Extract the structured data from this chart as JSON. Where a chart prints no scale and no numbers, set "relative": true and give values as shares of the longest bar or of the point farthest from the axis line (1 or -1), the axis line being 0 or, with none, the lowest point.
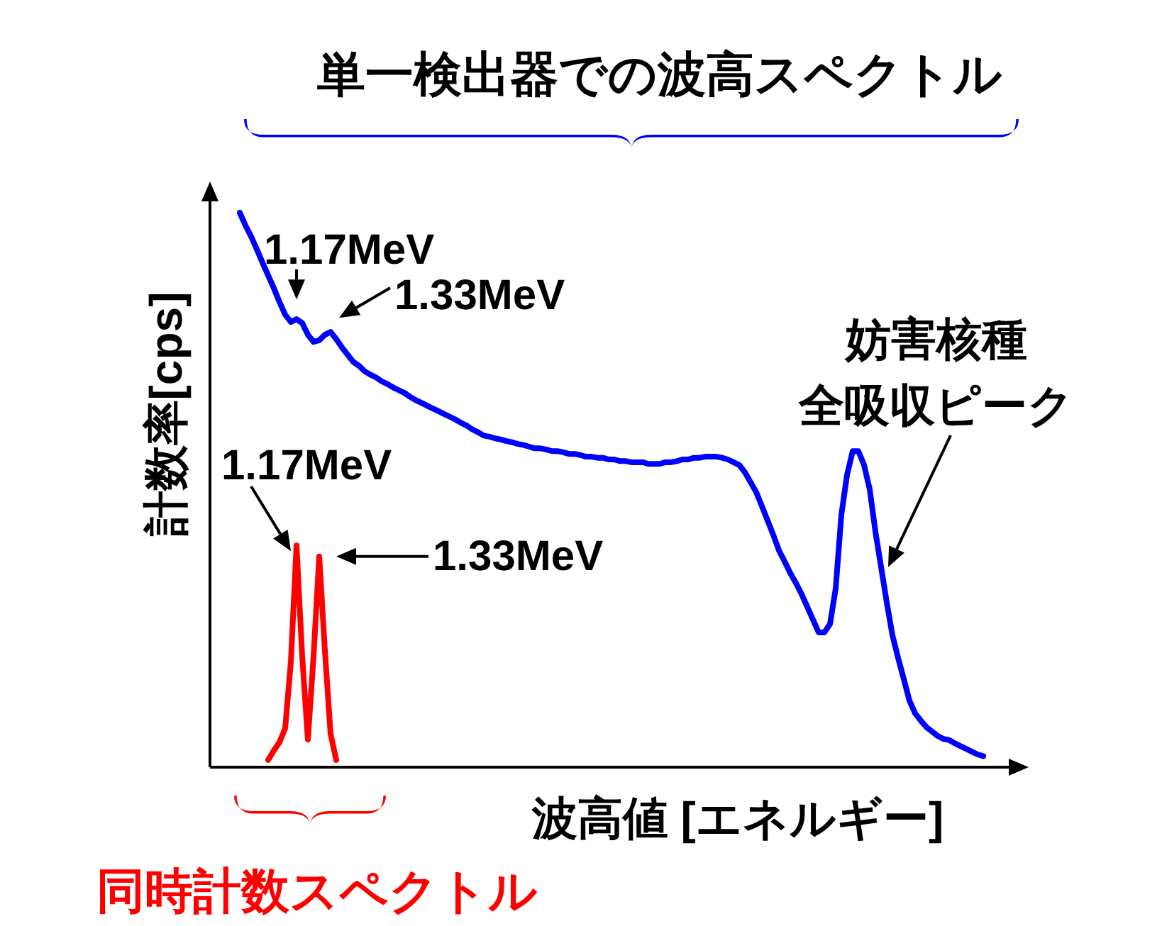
{
  "chart_data": {
    "type": "line",
    "relative": true,
    "title": "単一検出器での波高スペクトル",
    "xlabel": "波高値 [エネルギー]",
    "ylabel": "計数率[cps]",
    "categories": [
      null,
      null,
      null,
      null,
      null,
      null,
      null,
      null,
      null,
      null,
      null,
      null,
      null,
      null,
      null,
      null,
      null,
      null,
      null,
      null,
      null,
      null,
      null,
      null,
      null,
      null,
      null,
      null,
      null,
      null,
      null,
      null,
      null,
      null,
      null,
      null,
      null,
      null,
      null,
      null,
      null,
      null,
      null,
      null,
      null,
      null,
      null,
      null,
      null,
      null,
      null,
      null,
      null,
      null,
      null,
      null,
      null,
      null,
      null,
      null,
      null,
      null,
      null,
      null,
      null,
      null,
      null,
      null,
      null,
      null,
      null,
      null,
      null,
      null,
      null,
      null,
      null,
      null,
      null,
      null,
      null,
      null,
      null,
      null,
      null,
      null,
      null,
      null,
      null,
      null,
      null,
      null,
      null,
      null,
      null,
      null,
      null,
      null,
      null,
      null,
      null,
      null,
      null,
      null,
      null,
      null,
      null,
      null,
      null,
      null,
      null,
      null,
      null,
      null,
      null,
      null,
      null,
      null,
      null,
      null,
      null,
      null,
      null,
      null,
      null,
      null,
      null,
      null,
      null,
      null,
      null,
      null
    ],
    "series": [
      {
        "color": "#0000ff",
        "values": [
          1.0,
          0.977,
          0.957,
          0.934,
          0.91,
          0.887,
          0.864,
          0.839,
          0.816,
          0.803,
          0.808,
          0.801,
          0.78,
          0.767,
          0.77,
          0.78,
          0.785,
          0.772,
          0.757,
          0.744,
          0.731,
          0.724,
          0.714,
          0.708,
          0.703,
          0.696,
          0.691,
          0.685,
          0.68,
          0.675,
          0.668,
          0.662,
          0.657,
          0.652,
          0.647,
          0.642,
          0.637,
          0.632,
          0.627,
          0.621,
          0.616,
          0.609,
          0.604,
          0.598,
          0.596,
          0.593,
          0.591,
          0.588,
          0.586,
          0.583,
          0.581,
          0.578,
          0.575,
          0.575,
          0.573,
          0.57,
          0.57,
          0.568,
          0.565,
          0.565,
          0.563,
          0.56,
          0.56,
          0.558,
          0.558,
          0.555,
          0.555,
          0.552,
          0.552,
          0.55,
          0.55,
          0.55,
          0.547,
          0.547,
          0.547,
          0.55,
          0.55,
          0.552,
          0.555,
          0.555,
          0.558,
          0.558,
          0.56,
          0.56,
          0.56,
          0.558,
          0.555,
          0.55,
          0.545,
          0.532,
          0.514,
          0.496,
          0.471,
          0.445,
          0.419,
          0.391,
          0.371,
          0.35,
          0.332,
          0.312,
          0.289,
          0.266,
          0.243,
          0.243,
          0.258,
          0.322,
          0.455,
          0.527,
          0.57,
          0.57,
          0.545,
          0.501,
          0.425,
          0.361,
          0.297,
          0.238,
          0.197,
          0.159,
          0.12,
          0.097,
          0.084,
          0.072,
          0.064,
          0.056,
          0.051,
          0.049,
          0.043,
          0.038,
          0.033,
          0.028,
          0.023,
          0.02
        ]
      },
      {
        "color": "#ff0000",
        "values": [
          null,
          null,
          null,
          null,
          null,
          0.013,
          0.03,
          0.045,
          0.07,
          0.19,
          0.4,
          0.2,
          0.05,
          0.2,
          0.38,
          0.21,
          0.06,
          0.013,
          null,
          null,
          null,
          null,
          null,
          null,
          null,
          null,
          null,
          null,
          null,
          null,
          null,
          null,
          null,
          null,
          null,
          null,
          null,
          null,
          null,
          null,
          null,
          null,
          null,
          null,
          null,
          null,
          null,
          null,
          null,
          null,
          null,
          null,
          null,
          null,
          null,
          null,
          null,
          null,
          null,
          null,
          null,
          null,
          null,
          null,
          null,
          null,
          null,
          null,
          null,
          null,
          null,
          null,
          null,
          null,
          null,
          null,
          null,
          null,
          null,
          null,
          null,
          null,
          null,
          null,
          null,
          null,
          null,
          null,
          null,
          null,
          null,
          null,
          null,
          null,
          null,
          null,
          null,
          null,
          null,
          null,
          null,
          null,
          null,
          null,
          null,
          null,
          null,
          null,
          null,
          null,
          null,
          null,
          null,
          null,
          null,
          null,
          null,
          null,
          null,
          null,
          null,
          null,
          null,
          null,
          null,
          null,
          null,
          null,
          null,
          null,
          null,
          null
        ]
      }
    ],
    "annotations": [
      "1.17MeV",
      "1.33MeV",
      "1.17MeV",
      "1.33MeV",
      "妨害核種",
      "全吸収ピーク",
      "同時計数スペクトル"
    ]
  }
}
